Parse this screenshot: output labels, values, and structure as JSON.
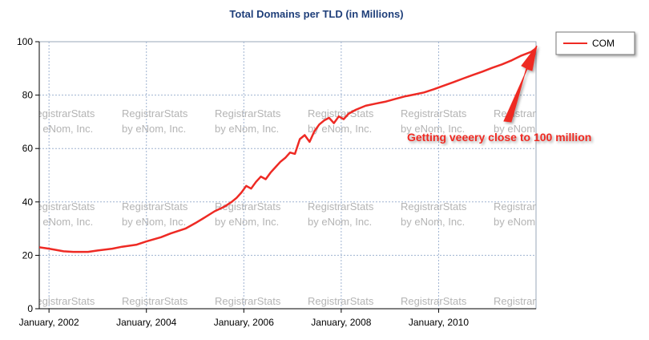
{
  "chart_data": {
    "type": "line",
    "title": "Total Domains per TLD (in Millions)",
    "xlabel": "",
    "ylabel": "",
    "ylim": [
      0,
      100
    ],
    "yticks": [
      0,
      20,
      40,
      60,
      80,
      100
    ],
    "xticks": [
      "January, 2002",
      "January, 2004",
      "January, 2006",
      "January, 2008",
      "January, 2010"
    ],
    "xtick_values": [
      2002.0,
      2004.0,
      2006.0,
      2008.0,
      2010.0
    ],
    "xlim": [
      2001.8,
      2012.0
    ],
    "grid": true,
    "legend": "top-right",
    "series": [
      {
        "name": "COM",
        "color": "#ee2a24",
        "x": [
          2001.8,
          2002.0,
          2002.3,
          2002.5,
          2002.8,
          2003.0,
          2003.3,
          2003.5,
          2003.8,
          2004.0,
          2004.3,
          2004.5,
          2004.8,
          2005.0,
          2005.2,
          2005.4,
          2005.6,
          2005.75,
          2005.85,
          2005.95,
          2006.05,
          2006.15,
          2006.25,
          2006.35,
          2006.45,
          2006.55,
          2006.65,
          2006.75,
          2006.85,
          2006.95,
          2007.05,
          2007.15,
          2007.25,
          2007.35,
          2007.45,
          2007.55,
          2007.65,
          2007.75,
          2007.85,
          2007.95,
          2008.05,
          2008.15,
          2008.3,
          2008.5,
          2008.7,
          2008.9,
          2009.1,
          2009.3,
          2009.5,
          2009.7,
          2009.9,
          2010.1,
          2010.3,
          2010.5,
          2010.7,
          2010.9,
          2011.1,
          2011.3,
          2011.5,
          2011.7,
          2011.9,
          2012.0
        ],
        "values": [
          23,
          22.5,
          21.5,
          21.3,
          21.3,
          21.8,
          22.5,
          23.2,
          24,
          25.2,
          26.8,
          28.2,
          30,
          32,
          34.2,
          36.5,
          38.2,
          40,
          41.5,
          43.5,
          46,
          45,
          47.5,
          49.5,
          48.5,
          51,
          53,
          55,
          56.5,
          58.5,
          58,
          63.5,
          65,
          62.5,
          66.5,
          69,
          70.5,
          71.5,
          69.5,
          72,
          71,
          73,
          74.5,
          76,
          76.8,
          77.5,
          78.5,
          79.5,
          80.2,
          81,
          82.2,
          83.5,
          84.8,
          86.2,
          87.5,
          88.8,
          90.2,
          91.5,
          93,
          94.8,
          96.2,
          97.5
        ]
      }
    ],
    "annotation": {
      "text": "Getting veeery close to 100 million",
      "color": "#ee2a24"
    },
    "watermark": {
      "line1": "RegistrarStats",
      "line2": "by eNom, Inc."
    }
  }
}
